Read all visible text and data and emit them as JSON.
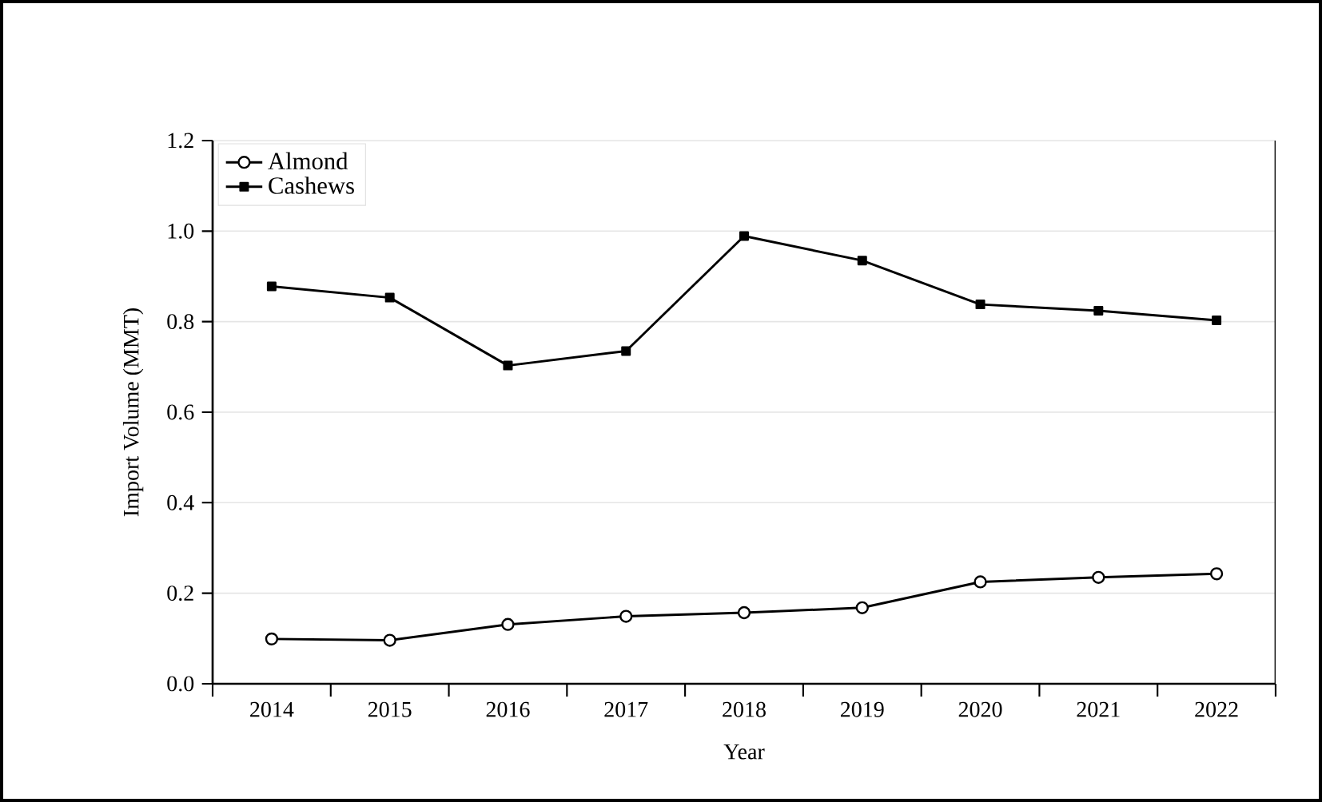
{
  "chart_data": {
    "type": "line",
    "xlabel": "Year",
    "ylabel": "Import Volume (MMT)",
    "categories": [
      "2014",
      "2015",
      "2016",
      "2017",
      "2018",
      "2019",
      "2020",
      "2021",
      "2022"
    ],
    "series": [
      {
        "name": "Almond",
        "color": "#000000",
        "marker": "circle",
        "values": [
          0.099,
          0.096,
          0.131,
          0.149,
          0.157,
          0.168,
          0.225,
          0.235,
          0.243
        ]
      },
      {
        "name": "Cashews",
        "color": "#000000",
        "marker": "square",
        "values": [
          0.878,
          0.853,
          0.703,
          0.735,
          0.989,
          0.935,
          0.838,
          0.824,
          0.803
        ]
      }
    ],
    "ylim": [
      0,
      1.2
    ],
    "yticks": [
      {
        "value": 0,
        "label": "0.0"
      },
      {
        "value": 0.2,
        "label": "0.2"
      },
      {
        "value": 0.4,
        "label": "0.4"
      },
      {
        "value": 0.6,
        "label": "0.6"
      },
      {
        "value": 0.8,
        "label": "0.8"
      },
      {
        "value": 1.0,
        "label": "1.0"
      },
      {
        "value": 1.2,
        "label": "1.2"
      }
    ],
    "grid": "y",
    "legend": "top left",
    "line_style": "solid"
  }
}
